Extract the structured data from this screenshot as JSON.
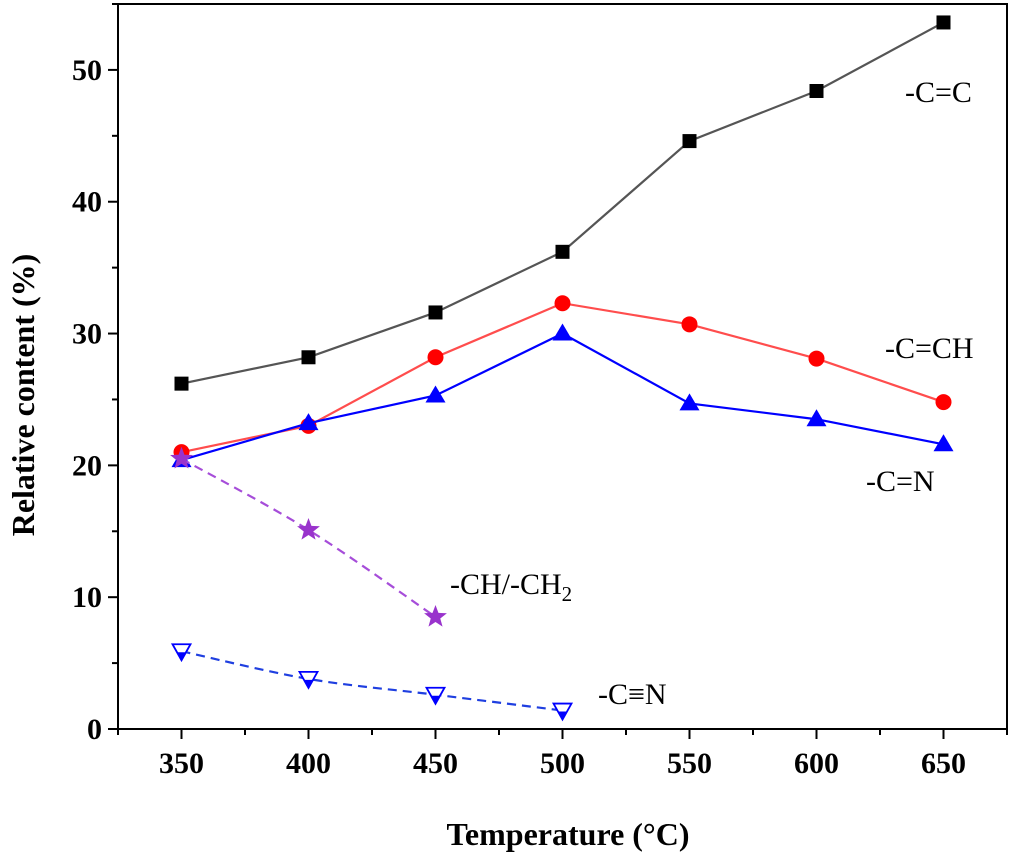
{
  "chart_data": {
    "type": "line",
    "xlabel": "Temperature (°C)",
    "ylabel": "Relative content (%)",
    "xlim": [
      325,
      675
    ],
    "ylim": [
      0,
      55
    ],
    "xticks": [
      "350",
      "400",
      "450",
      "500",
      "550",
      "600",
      "650"
    ],
    "yticks": [
      "0",
      "10",
      "20",
      "30",
      "40",
      "50"
    ],
    "grid": false,
    "series": [
      {
        "name": "-C=C",
        "color": "#000000",
        "line_color": "#555555",
        "marker": "square",
        "dashed": false,
        "x": [
          350,
          400,
          450,
          500,
          550,
          600,
          650
        ],
        "y": [
          26.2,
          28.2,
          31.6,
          36.2,
          44.6,
          48.4,
          53.6
        ]
      },
      {
        "name": "-C=CH",
        "color": "#ff0000",
        "line_color": "#ff4d4d",
        "marker": "circle",
        "dashed": false,
        "x": [
          350,
          400,
          450,
          500,
          550,
          600,
          650
        ],
        "y": [
          21.0,
          23.0,
          28.2,
          32.3,
          30.7,
          28.1,
          24.8
        ]
      },
      {
        "name": "-C=N",
        "color": "#0000ff",
        "line_color": "#0000ff",
        "marker": "triangle-up",
        "dashed": false,
        "x": [
          350,
          400,
          450,
          500,
          550,
          600,
          650
        ],
        "y": [
          20.4,
          23.2,
          25.3,
          30.0,
          24.7,
          23.5,
          21.6
        ]
      },
      {
        "name": "-CH/-CH2",
        "color": "#9933cc",
        "line_color": "#a64dd9",
        "marker": "star",
        "dashed": true,
        "x": [
          350,
          400,
          450
        ],
        "y": [
          20.5,
          15.1,
          8.5
        ]
      },
      {
        "name": "-C≡N",
        "color": "#0000ff",
        "line_color": "#1f3fe0",
        "marker": "triangle-down-half",
        "dashed": true,
        "x": [
          350,
          400,
          450,
          500
        ],
        "y": [
          5.9,
          3.8,
          2.6,
          1.4
        ]
      }
    ]
  },
  "labels": {
    "cc": "-C=C",
    "cch": "-C=CH",
    "cn": "-C=N",
    "ch_main": "-CH/-CH",
    "ch_sub": "2",
    "cnt": "-C≡N"
  }
}
